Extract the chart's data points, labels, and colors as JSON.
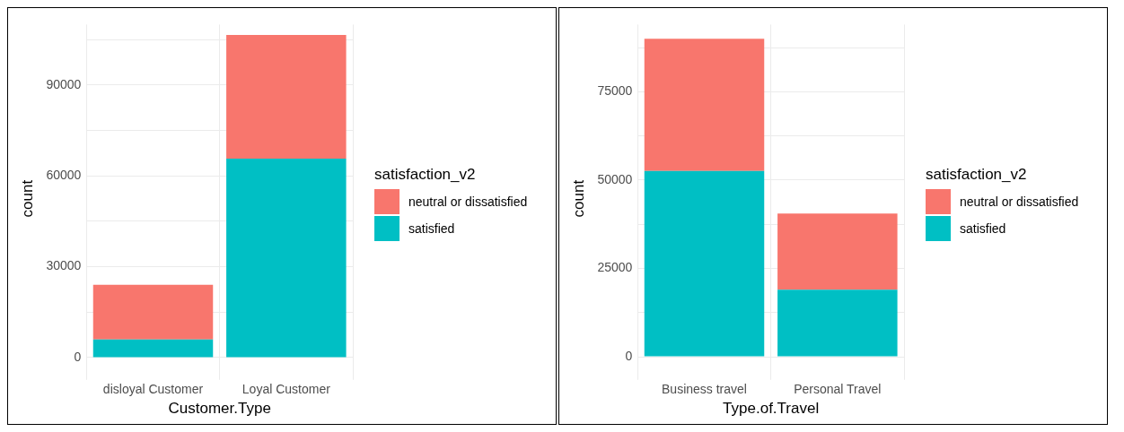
{
  "chart_data": [
    {
      "type": "bar",
      "stacked": true,
      "xlabel": "Customer.Type",
      "ylabel": "count",
      "legend_title": "satisfaction_v2",
      "legend": "right",
      "grid": true,
      "categories": [
        "disloyal Customer",
        "Loyal Customer"
      ],
      "series": [
        {
          "name": "satisfied",
          "color": "#00bfc4",
          "values": [
            6000,
            65700
          ]
        },
        {
          "name": "neutral or dissatisfied",
          "color": "#f8766d",
          "values": [
            18000,
            40900
          ]
        }
      ],
      "ylim": [
        -5000,
        110000
      ],
      "yticks": [
        0,
        {
          "value": 15000,
          "label": null
        },
        30000,
        {
          "value": 45000,
          "label": null
        },
        60000,
        {
          "value": 75000,
          "label": null
        },
        90000,
        {
          "value": 105000,
          "label": null
        }
      ]
    },
    {
      "type": "bar",
      "stacked": true,
      "xlabel": "Type.of.Travel",
      "ylabel": "count",
      "legend_title": "satisfaction_v2",
      "legend": "right",
      "grid": true,
      "categories": [
        "Business travel",
        "Personal Travel"
      ],
      "series": [
        {
          "name": "satisfied",
          "color": "#00bfc4",
          "values": [
            52600,
            19000
          ]
        },
        {
          "name": "neutral or dissatisfied",
          "color": "#f8766d",
          "values": [
            37400,
            21500
          ]
        }
      ],
      "ylim": [
        -4500,
        94000
      ],
      "yticks": [
        0,
        {
          "value": 12500,
          "label": null
        },
        25000,
        {
          "value": 37500,
          "label": null
        },
        50000,
        {
          "value": 62500,
          "label": null
        },
        75000,
        {
          "value": 87500,
          "label": null
        }
      ]
    }
  ]
}
